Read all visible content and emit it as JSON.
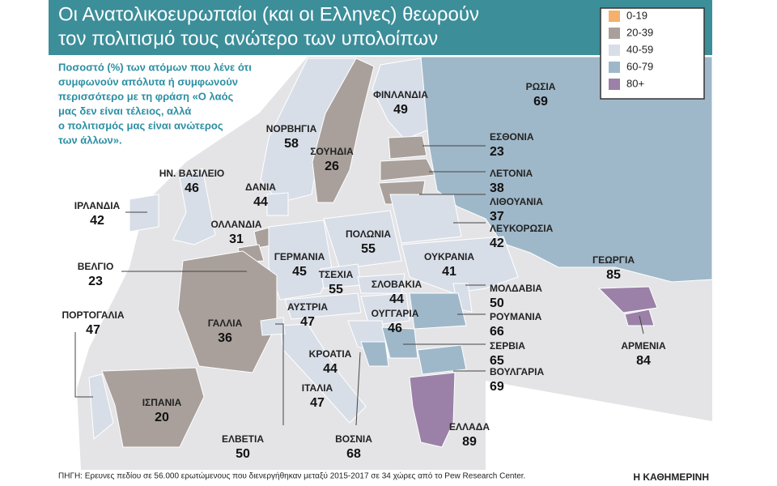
{
  "header": {
    "title_lines": [
      "Οι Ανατολικοευρωπαίοι (και οι Ελληνες) θεωρούν",
      "τον πολιτισμό τους ανώτερο των υπολοίπων"
    ]
  },
  "subtitle_lines": [
    "Ποσοστό (%) των ατόμων που λένε ότι",
    "συμφωνούν απόλυτα ή συμφωνούν",
    "περισσότερο με τη φράση «Ο λαός",
    "μας δεν είναι τέλειος, αλλά",
    "ο πολιτισμός μας είναι ανώτερος",
    "των άλλων»."
  ],
  "legend": [
    {
      "label": "0-19",
      "color": "#f5b06b"
    },
    {
      "label": "20-39",
      "color": "#a9a09b"
    },
    {
      "label": "40-59",
      "color": "#d8dee8"
    },
    {
      "label": "60-79",
      "color": "#9fb8c9"
    },
    {
      "label": "80+",
      "color": "#9b80a8"
    }
  ],
  "countries": [
    {
      "name": "ΦΙΝΛΑΝΔΙΑ",
      "value": 49
    },
    {
      "name": "ΡΩΣΙΑ",
      "value": 69
    },
    {
      "name": "ΝΟΡΒΗΓΙΑ",
      "value": 58
    },
    {
      "name": "ΣΟΥΗΔΙΑ",
      "value": 26
    },
    {
      "name": "ΕΣΘΟΝΙΑ",
      "value": 23
    },
    {
      "name": "ΛΕΤΟΝΙΑ",
      "value": 38
    },
    {
      "name": "ΛΙΘΟΥΑΝΙΑ",
      "value": 37
    },
    {
      "name": "ΗΝ. ΒΑΣΙΛΕΙΟ",
      "value": 46
    },
    {
      "name": "ΔΑΝΙΑ",
      "value": 44
    },
    {
      "name": "ΙΡΛΑΝΔΙΑ",
      "value": 42
    },
    {
      "name": "ΟΛΛΑΝΔΙΑ",
      "value": 31
    },
    {
      "name": "ΠΟΛΩΝΙΑ",
      "value": 55
    },
    {
      "name": "ΛΕΥΚΟΡΩΣΙΑ",
      "value": 42
    },
    {
      "name": "ΒΕΛΓΙΟ",
      "value": 23
    },
    {
      "name": "ΓΕΡΜΑΝΙΑ",
      "value": 45
    },
    {
      "name": "ΟΥΚΡΑΝΙΑ",
      "value": 41
    },
    {
      "name": "ΤΣΕΧΙΑ",
      "value": 55
    },
    {
      "name": "ΣΛΟΒΑΚΙΑ",
      "value": 44
    },
    {
      "name": "ΜΟΛΔΑΒΙΑ",
      "value": 50
    },
    {
      "name": "ΓΕΩΡΓΙΑ",
      "value": 85
    },
    {
      "name": "ΠΟΡΤΟΓΑΛΙΑ",
      "value": 47
    },
    {
      "name": "ΑΥΣΤΡΙΑ",
      "value": 47
    },
    {
      "name": "ΟΥΓΓΑΡΙΑ",
      "value": 46
    },
    {
      "name": "ΡΟΥΜΑΝΙΑ",
      "value": 66
    },
    {
      "name": "ΓΑΛΛΙΑ",
      "value": 36
    },
    {
      "name": "ΑΡΜΕΝΙΑ",
      "value": 84
    },
    {
      "name": "ΚΡΟΑΤΙΑ",
      "value": 44
    },
    {
      "name": "ΣΕΡΒΙΑ",
      "value": 65
    },
    {
      "name": "ΒΟΥΛΓΑΡΙΑ",
      "value": 69
    },
    {
      "name": "ΙΤΑΛΙΑ",
      "value": 47
    },
    {
      "name": "ΙΣΠΑΝΙΑ",
      "value": 20
    },
    {
      "name": "ΕΛΒΕΤΙΑ",
      "value": 50
    },
    {
      "name": "ΒΟΣΝΙΑ",
      "value": 68
    },
    {
      "name": "ΕΛΛΑΔΑ",
      "value": 89
    }
  ],
  "source": "ΠΗΓΗ: Ερευνες πεδίου σε 56.000 ερωτώμενους που διενεργήθηκαν μεταξύ 2015-2017 σε 34 χώρες από το Pew Research Center.",
  "brand": "Η ΚΑΘΗΜΕΡΙΝΗ"
}
